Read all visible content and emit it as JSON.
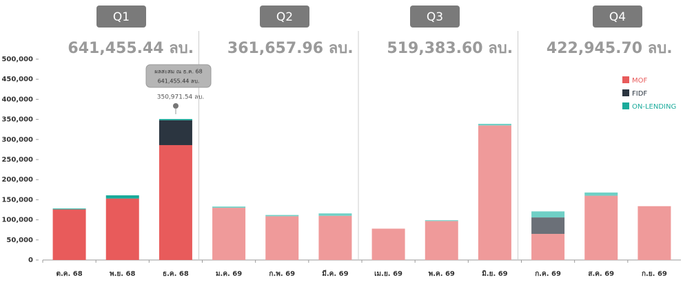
{
  "chart_data": {
    "type": "stacked_bar",
    "quarters": [
      {
        "label": "Q1",
        "total": "641,455.44 ลบ."
      },
      {
        "label": "Q2",
        "total": "361,657.96 ลบ."
      },
      {
        "label": "Q3",
        "total": "519,383.60 ลบ."
      },
      {
        "label": "Q4",
        "total": "422,945.70 ลบ."
      }
    ],
    "categories": [
      "ต.ค. 68",
      "พ.ย. 68",
      "ธ.ค. 68",
      "ม.ค. 69",
      "ก.พ. 69",
      "มี.ค. 69",
      "เม.ย. 69",
      "พ.ค. 69",
      "มิ.ย. 69",
      "ก.ค. 69",
      "ส.ค. 69",
      "ก.ย. 69"
    ],
    "series": [
      {
        "name": "MOF",
        "color": "#e85b5b",
        "colors": [
          "#e85b5b",
          "#e85b5b",
          "#e85b5b",
          "#ef9a9a",
          "#ef9a9a",
          "#ef9a9a",
          "#ef9a9a",
          "#ef9a9a",
          "#ef9a9a",
          "#ef9a9a",
          "#ef9a9a",
          "#ef9a9a"
        ],
        "values": [
          126000,
          153000,
          286000,
          130000,
          109000,
          110000,
          78000,
          97000,
          335000,
          65000,
          160000,
          134000
        ]
      },
      {
        "name": "FIDF",
        "color": "#2b3540",
        "colors": [
          "#2b3540",
          "#2b3540",
          "#2b3540",
          "#6b7078",
          "#6b7078",
          "#6b7078",
          "#6b7078",
          "#6b7078",
          "#6b7078",
          "#6b7078",
          "#6b7078",
          "#6b7078"
        ],
        "values": [
          0,
          0,
          62000,
          0,
          0,
          0,
          0,
          0,
          0,
          41000,
          0,
          0
        ]
      },
      {
        "name": "ON-LENDING",
        "color": "#1aab9b",
        "colors": [
          "#1aab9b",
          "#1aab9b",
          "#1aab9b",
          "#6fd0c6",
          "#6fd0c6",
          "#6fd0c6",
          "#6fd0c6",
          "#6fd0c6",
          "#6fd0c6",
          "#6fd0c6",
          "#6fd0c6",
          "#6fd0c6"
        ],
        "values": [
          2000,
          8000,
          3000,
          3000,
          3000,
          6000,
          0,
          2000,
          4000,
          15000,
          8000,
          0
        ]
      }
    ],
    "ylim": [
      0,
      500000
    ],
    "yticks": [
      0,
      {
        "value": 50000,
        "label": "50,000"
      },
      {
        "value": 100000,
        "label": "100,000"
      },
      {
        "value": 150000,
        "label": "150,000"
      },
      {
        "value": 200000,
        "label": "200,000"
      },
      {
        "value": 250000,
        "label": "250,000"
      },
      {
        "value": 300000,
        "label": "300,000"
      },
      {
        "value": 350000,
        "label": "350,000"
      },
      {
        "value": 400000,
        "label": "400,000"
      },
      {
        "value": 450000,
        "label": "450,000"
      },
      {
        "value": 500000,
        "label": "500,000"
      }
    ],
    "tooltip": {
      "title": "ผลสะสม ณ ธ.ค. 68",
      "value": "641,455.44 ลบ.",
      "bar_label": "350,971.54 ลบ."
    }
  }
}
